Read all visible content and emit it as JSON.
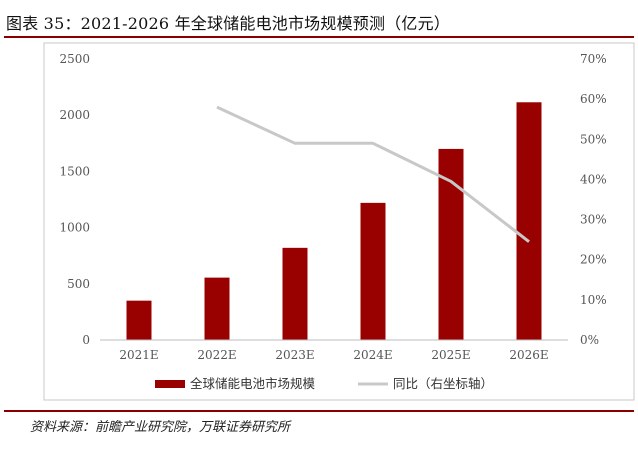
{
  "figure": {
    "title": "图表 35：2021-2026 年全球储能电池市场规模预测（亿元）",
    "source": "资料来源：前瞻产业研究院，万联证券研究所"
  },
  "chart_data": {
    "type": "bar",
    "categories": [
      "2021E",
      "2022E",
      "2023E",
      "2024E",
      "2025E",
      "2026E"
    ],
    "series": [
      {
        "name": "全球储能电池市场规模",
        "type": "bar",
        "axis": "left",
        "color": "#990000",
        "values": [
          350,
          555,
          820,
          1220,
          1700,
          2115
        ]
      },
      {
        "name": "同比（右坐标轴）",
        "type": "line",
        "axis": "right",
        "color": "#c8c8c8",
        "values": [
          null,
          0.58,
          0.49,
          0.49,
          0.395,
          0.245
        ]
      }
    ],
    "left_axis": {
      "range": [
        0,
        2500
      ],
      "ticks": [
        "0",
        "500",
        "1000",
        "1500",
        "2000",
        "2500"
      ]
    },
    "right_axis": {
      "range": [
        0,
        0.7
      ],
      "ticks": [
        "0%",
        "10%",
        "20%",
        "30%",
        "40%",
        "50%",
        "60%",
        "70%"
      ]
    },
    "grid": false,
    "legend_position": "bottom"
  }
}
